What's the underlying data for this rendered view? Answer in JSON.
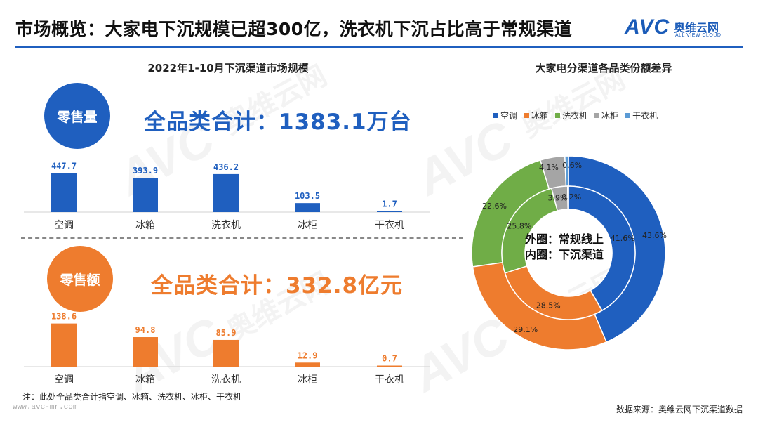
{
  "title": "市场概览：大家电下沉规模已超300亿，洗衣机下沉占比高于常规渠道",
  "logo": {
    "mark": "AVC",
    "cn": "奥维云网",
    "en": "ALL VIEW CLOUD"
  },
  "watermark": {
    "mark": "AVC",
    "cn": "奥维云网",
    "en": "ALL VIEW CLOUD"
  },
  "colors": {
    "blue": "#1f5fbf",
    "orange": "#ee7c2e",
    "green": "#70ad47",
    "gray": "#a5a5a5",
    "lightblue": "#5b9bd5"
  },
  "left_title": "2022年1-10月下沉渠道市场规模",
  "right_title": "大家电分渠道各品类份额差异",
  "volume": {
    "badge": "零售量",
    "total": "全品类合计：1383.1万台"
  },
  "value": {
    "badge": "零售额",
    "total": "全品类合计：332.8亿元"
  },
  "donut_center": {
    "line1": "外圈：常规线上",
    "line2": "内圈：下沉渠道"
  },
  "note": "注：此处全品类合计指空调、冰箱、洗衣机、冰柜、干衣机",
  "url": "www.avc-mr.com",
  "source": "数据来源：奥维云网下沉渠道数据",
  "chart_data": [
    {
      "type": "bar",
      "categories": [
        "空调",
        "冰箱",
        "洗衣机",
        "冰柜",
        "干衣机"
      ],
      "values": [
        447.7,
        393.9,
        436.2,
        103.5,
        1.7
      ],
      "value_labels": [
        "447.7",
        "393.9",
        "436.2",
        "103.5",
        "1.7"
      ],
      "title": "零售量",
      "ylim": [
        0,
        500
      ],
      "color": "#1f5fbf"
    },
    {
      "type": "bar",
      "categories": [
        "空调",
        "冰箱",
        "洗衣机",
        "冰柜",
        "干衣机"
      ],
      "values": [
        138.6,
        94.8,
        85.9,
        12.9,
        0.7
      ],
      "value_labels": [
        "138.6",
        "94.8",
        "85.9",
        "12.9",
        "0.7"
      ],
      "title": "零售额",
      "ylim": [
        0,
        140
      ],
      "color": "#ee7c2e"
    },
    {
      "type": "pie",
      "title": "大家电分渠道各品类份额差异",
      "categories": [
        "空调",
        "冰箱",
        "洗衣机",
        "冰柜",
        "干衣机"
      ],
      "colors": [
        "#1f5fbf",
        "#ee7c2e",
        "#70ad47",
        "#a5a5a5",
        "#5b9bd5"
      ],
      "series": [
        {
          "name": "外圈：常规线上",
          "values": [
            43.6,
            29.1,
            22.6,
            4.1,
            0.6
          ],
          "labels": [
            "43.6%",
            "29.1%",
            "22.6%",
            "4.1%",
            "0.6%"
          ]
        },
        {
          "name": "内圈：下沉渠道",
          "values": [
            41.6,
            28.5,
            25.8,
            3.9,
            0.2
          ],
          "labels": [
            "41.6%",
            "28.5%",
            "25.8%",
            "3.9%",
            "0.2%"
          ]
        }
      ],
      "legend": "top"
    }
  ]
}
